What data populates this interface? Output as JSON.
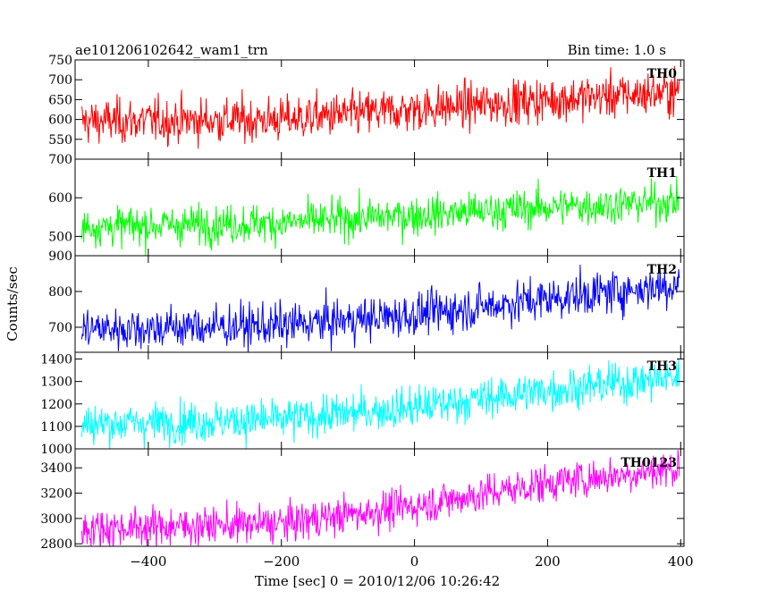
{
  "header": {
    "left_title": "ae101206102642_wam1_trn",
    "right_title": "Bin time: 1.0 s"
  },
  "axes": {
    "ylabel": "Counts/sec",
    "xlabel": "Time [sec] 0 = 2010/12/06 10:26:42"
  },
  "chart_data": {
    "type": "line",
    "x_range": [
      -510,
      405
    ],
    "x_ticks": [
      -400,
      -200,
      0,
      200,
      400
    ],
    "x_tick_labels": [
      "−400",
      "−200",
      "0",
      "200",
      "400"
    ],
    "bin_time_s": 1.0,
    "grid": false,
    "panels": [
      {
        "name": "TH0",
        "color": "#ff0000",
        "ylim": [
          500,
          750
        ],
        "y_ticks": [
          550,
          600,
          650,
          700,
          750
        ],
        "y_tick_labels": [
          "550",
          "600",
          "650",
          "700",
          "750"
        ],
        "trend": [
          [
            -500,
            595
          ],
          [
            -200,
            600
          ],
          [
            0,
            625
          ],
          [
            200,
            650
          ],
          [
            400,
            670
          ]
        ],
        "noise": 28
      },
      {
        "name": "TH1",
        "color": "#00ff00",
        "ylim": [
          450,
          700
        ],
        "y_ticks": [
          500,
          600,
          700
        ],
        "y_tick_labels": [
          "500",
          "600",
          "700"
        ],
        "trend": [
          [
            -500,
            525
          ],
          [
            -200,
            535
          ],
          [
            0,
            555
          ],
          [
            200,
            575
          ],
          [
            400,
            590
          ]
        ],
        "noise": 25
      },
      {
        "name": "TH2",
        "color": "#0000ff",
        "ylim": [
          630,
          900
        ],
        "y_ticks": [
          700,
          800,
          900
        ],
        "y_tick_labels": [
          "700",
          "800",
          "900"
        ],
        "trend": [
          [
            -500,
            695
          ],
          [
            -200,
            705
          ],
          [
            0,
            735
          ],
          [
            200,
            780
          ],
          [
            400,
            820
          ]
        ],
        "noise": 30
      },
      {
        "name": "TH3",
        "color": "#00ffff",
        "ylim": [
          1000,
          1430
        ],
        "y_ticks": [
          1000,
          1100,
          1200,
          1300,
          1400
        ],
        "y_tick_labels": [
          "1000",
          "1100",
          "1200",
          "1300",
          "1400"
        ],
        "trend": [
          [
            -500,
            1110
          ],
          [
            -200,
            1130
          ],
          [
            0,
            1185
          ],
          [
            200,
            1260
          ],
          [
            400,
            1320
          ]
        ],
        "noise": 45
      },
      {
        "name": "TH0123",
        "color": "#ff00ff",
        "ylim": [
          2780,
          3550
        ],
        "y_ticks": [
          2800,
          3000,
          3200,
          3400
        ],
        "y_tick_labels": [
          "2800",
          "3000",
          "3200",
          "3400"
        ],
        "trend": [
          [
            -500,
            2920
          ],
          [
            -200,
            2960
          ],
          [
            0,
            3100
          ],
          [
            200,
            3280
          ],
          [
            400,
            3400
          ]
        ],
        "noise": 75
      }
    ]
  }
}
